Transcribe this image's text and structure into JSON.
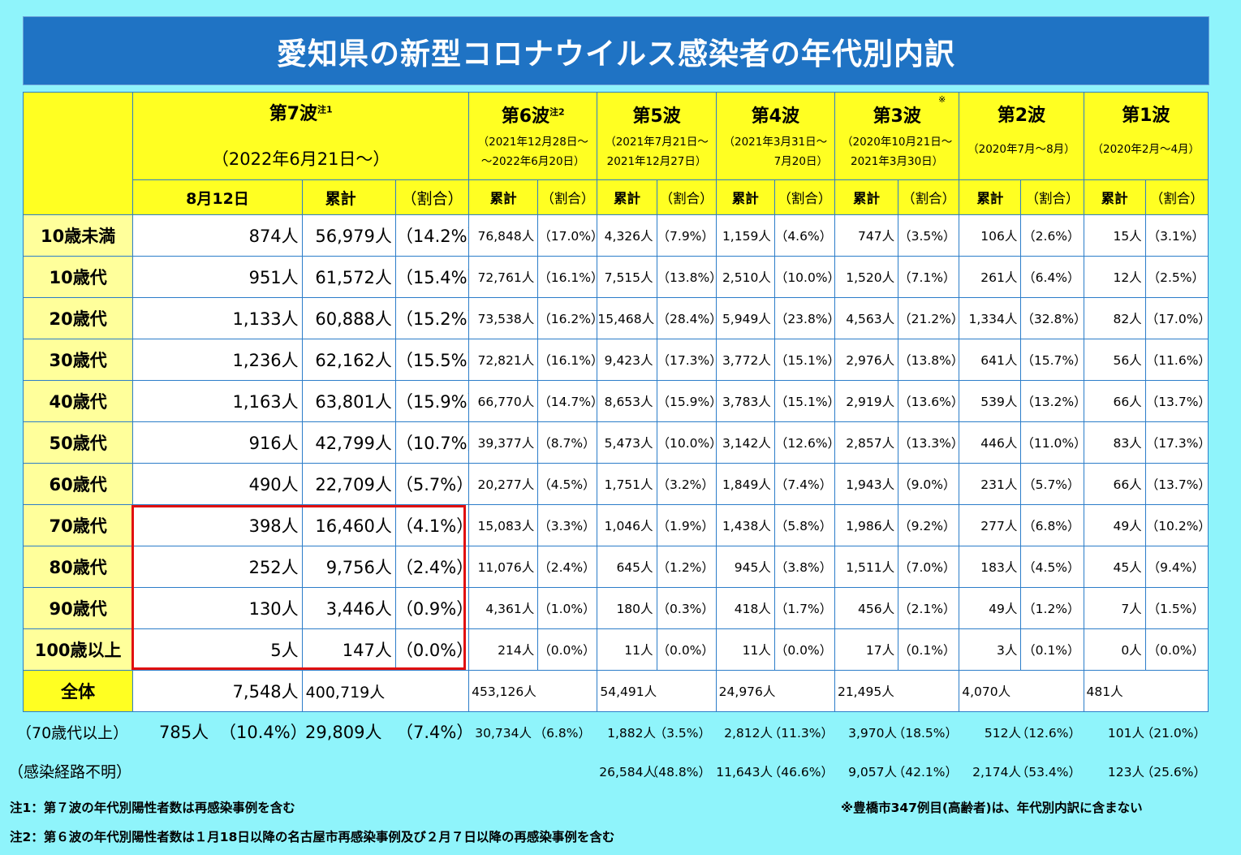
{
  "title": "愛知県の新型コロナウイルス感染者の年代別内訳",
  "waves": [
    {
      "name": "第7波",
      "note": "注1",
      "range1": "（2022年6月21日～）",
      "range2": ""
    },
    {
      "name": "第6波",
      "note": "注2",
      "range1": "（2021年12月28日～",
      "range2": "～2022年6月20日）"
    },
    {
      "name": "第5波",
      "note": "",
      "range1": "（2021年7月21日～",
      "range2": "2021年12月27日）"
    },
    {
      "name": "第4波",
      "note": "",
      "range1": "（2021年3月31日～",
      "range2": "7月20日）"
    },
    {
      "name": "第3波",
      "note": "※",
      "range1": "（2020年10月21日～",
      "range2": "2021年3月30日）"
    },
    {
      "name": "第2波",
      "note": "",
      "range1": "（2020年7月～8月）",
      "range2": ""
    },
    {
      "name": "第1波",
      "note": "",
      "range1": "（2020年2月～4月）",
      "range2": ""
    }
  ],
  "sub_headers": {
    "date": "8月12日",
    "cumulative": "累計",
    "ratio": "（割合）"
  },
  "rows": [
    {
      "label": "10歳未満",
      "c": [
        "874人",
        "56,979人",
        "（14.2%）",
        "76,848人",
        "（17.0%）",
        "4,326人",
        "（7.9%）",
        "1,159人",
        "（4.6%）",
        "747人",
        "（3.5%）",
        "106人",
        "（2.6%）",
        "15人",
        "（3.1%）"
      ]
    },
    {
      "label": "10歳代",
      "c": [
        "951人",
        "61,572人",
        "（15.4%）",
        "72,761人",
        "（16.1%）",
        "7,515人",
        "（13.8%）",
        "2,510人",
        "（10.0%）",
        "1,520人",
        "（7.1%）",
        "261人",
        "（6.4%）",
        "12人",
        "（2.5%）"
      ]
    },
    {
      "label": "20歳代",
      "c": [
        "1,133人",
        "60,888人",
        "（15.2%）",
        "73,538人",
        "（16.2%）",
        "15,468人",
        "（28.4%）",
        "5,949人",
        "（23.8%）",
        "4,563人",
        "（21.2%）",
        "1,334人",
        "（32.8%）",
        "82人",
        "（17.0%）"
      ]
    },
    {
      "label": "30歳代",
      "c": [
        "1,236人",
        "62,162人",
        "（15.5%）",
        "72,821人",
        "（16.1%）",
        "9,423人",
        "（17.3%）",
        "3,772人",
        "（15.1%）",
        "2,976人",
        "（13.8%）",
        "641人",
        "（15.7%）",
        "56人",
        "（11.6%）"
      ]
    },
    {
      "label": "40歳代",
      "c": [
        "1,163人",
        "63,801人",
        "（15.9%）",
        "66,770人",
        "（14.7%）",
        "8,653人",
        "（15.9%）",
        "3,783人",
        "（15.1%）",
        "2,919人",
        "（13.6%）",
        "539人",
        "（13.2%）",
        "66人",
        "（13.7%）"
      ]
    },
    {
      "label": "50歳代",
      "c": [
        "916人",
        "42,799人",
        "（10.7%）",
        "39,377人",
        "（8.7%）",
        "5,473人",
        "（10.0%）",
        "3,142人",
        "（12.6%）",
        "2,857人",
        "（13.3%）",
        "446人",
        "（11.0%）",
        "83人",
        "（17.3%）"
      ]
    },
    {
      "label": "60歳代",
      "c": [
        "490人",
        "22,709人",
        "（5.7%）",
        "20,277人",
        "（4.5%）",
        "1,751人",
        "（3.2%）",
        "1,849人",
        "（7.4%）",
        "1,943人",
        "（9.0%）",
        "231人",
        "（5.7%）",
        "66人",
        "（13.7%）"
      ]
    },
    {
      "label": "70歳代",
      "c": [
        "398人",
        "16,460人",
        "（4.1%）",
        "15,083人",
        "（3.3%）",
        "1,046人",
        "（1.9%）",
        "1,438人",
        "（5.8%）",
        "1,986人",
        "（9.2%）",
        "277人",
        "（6.8%）",
        "49人",
        "（10.2%）"
      ]
    },
    {
      "label": "80歳代",
      "c": [
        "252人",
        "9,756人",
        "（2.4%）",
        "11,076人",
        "（2.4%）",
        "645人",
        "（1.2%）",
        "945人",
        "（3.8%）",
        "1,511人",
        "（7.0%）",
        "183人",
        "（4.5%）",
        "45人",
        "（9.4%）"
      ]
    },
    {
      "label": "90歳代",
      "c": [
        "130人",
        "3,446人",
        "（0.9%）",
        "4,361人",
        "（1.0%）",
        "180人",
        "（0.3%）",
        "418人",
        "（1.7%）",
        "456人",
        "（2.1%）",
        "49人",
        "（1.2%）",
        "7人",
        "（1.5%）"
      ]
    },
    {
      "label": "100歳以上",
      "c": [
        "5人",
        "147人",
        "（0.0%）",
        "214人",
        "（0.0%）",
        "11人",
        "（0.0%）",
        "11人",
        "（0.0%）",
        "17人",
        "（0.1%）",
        "3人",
        "（0.1%）",
        "0人",
        "（0.0%）"
      ]
    }
  ],
  "total": {
    "label": "全体",
    "c": [
      "7,548人",
      "400,719人",
      "453,126人",
      "54,491人",
      "24,976人",
      "21,495人",
      "4,070人",
      "481人"
    ]
  },
  "over70": {
    "label": "（70歳代以上）",
    "date_count": "785人",
    "date_ratio": "（10.4%）",
    "cum": "29,809人",
    "cum_ratio": "（7.4%）",
    "w": [
      "30,734人",
      "（6.8%）",
      "1,882人",
      "（3.5%）",
      "2,812人",
      "（11.3%）",
      "3,970人",
      "（18.5%）",
      "512人",
      "（12.6%）",
      "101人",
      "（21.0%）"
    ]
  },
  "unknown": {
    "label": "（感染経路不明）",
    "w": [
      "26,584人",
      "（48.8%）",
      "11,643人",
      "（46.6%）",
      "9,057人",
      "（42.1%）",
      "2,174人",
      "（53.4%）",
      "123人",
      "（25.6%）"
    ]
  },
  "notes": {
    "n1": "注1：第７波の年代別陽性者数は再感染事例を含む",
    "n2": "注2：第６波の年代別陽性者数は１月18日以降の名古屋市再感染事例及び２月７日以降の再感染事例を含む",
    "n3": "※豊橋市347例目(高齢者)は、年代別内訳に含まない"
  }
}
